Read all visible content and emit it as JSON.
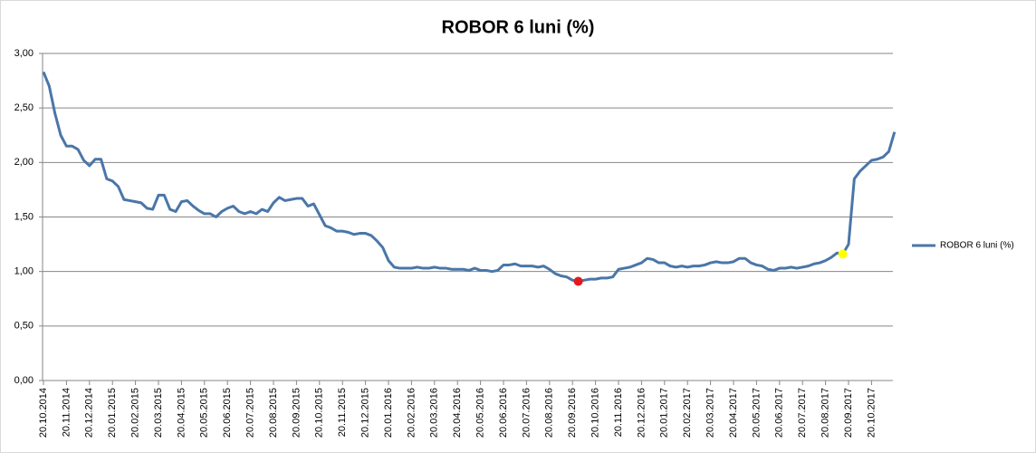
{
  "chart_data": {
    "type": "line",
    "title": "ROBOR 6 luni (%)",
    "categories": [
      "20.10.2014",
      null,
      null,
      null,
      "20.11.2014",
      null,
      null,
      null,
      "20.12.2014",
      null,
      null,
      null,
      "20.01.2015",
      null,
      null,
      null,
      "20.02.2015",
      null,
      null,
      null,
      "20.03.2015",
      null,
      null,
      null,
      "20.04.2015",
      null,
      null,
      null,
      "20.05.2015",
      null,
      null,
      null,
      "20.06.2015",
      null,
      null,
      null,
      "20.07.2015",
      null,
      null,
      null,
      "20.08.2015",
      null,
      null,
      null,
      "20.09.2015",
      null,
      null,
      null,
      "20.10.2015",
      null,
      null,
      null,
      "20.11.2015",
      null,
      null,
      null,
      "20.12.2015",
      null,
      null,
      null,
      "20.01.2016",
      null,
      null,
      null,
      "20.02.2016",
      null,
      null,
      null,
      "20.03.2016",
      null,
      null,
      null,
      "20.04.2016",
      null,
      null,
      null,
      "20.05.2016",
      null,
      null,
      null,
      "20.06.2016",
      null,
      null,
      null,
      "20.07.2016",
      null,
      null,
      null,
      "20.08.2016",
      null,
      null,
      null,
      "20.09.2016",
      null,
      null,
      null,
      "20.10.2016",
      null,
      null,
      null,
      "20.11.2016",
      null,
      null,
      null,
      "20.12.2016",
      null,
      null,
      null,
      "20.01.2017",
      null,
      null,
      null,
      "20.02.2017",
      null,
      null,
      null,
      "20.03.2017",
      null,
      null,
      null,
      "20.04.2017",
      null,
      null,
      null,
      "20.05.2017",
      null,
      null,
      null,
      "20.06.2017",
      null,
      null,
      null,
      "20.07.2017",
      null,
      null,
      null,
      "20.08.2017",
      null,
      null,
      null,
      "20.09.2017",
      null,
      null,
      null,
      "20.10.2017",
      null,
      null,
      null,
      null
    ],
    "series": [
      {
        "name": "ROBOR 6 luni (%)",
        "color": "#4a76a8",
        "values": [
          2.83,
          2.7,
          2.45,
          2.25,
          2.15,
          2.15,
          2.12,
          2.02,
          1.97,
          2.03,
          2.03,
          1.85,
          1.83,
          1.78,
          1.66,
          1.65,
          1.64,
          1.63,
          1.58,
          1.57,
          1.7,
          1.7,
          1.57,
          1.55,
          1.64,
          1.65,
          1.6,
          1.56,
          1.53,
          1.53,
          1.5,
          1.55,
          1.58,
          1.6,
          1.55,
          1.53,
          1.55,
          1.53,
          1.57,
          1.55,
          1.63,
          1.68,
          1.65,
          1.66,
          1.67,
          1.67,
          1.6,
          1.62,
          1.52,
          1.42,
          1.4,
          1.37,
          1.37,
          1.36,
          1.34,
          1.35,
          1.35,
          1.33,
          1.28,
          1.22,
          1.1,
          1.04,
          1.03,
          1.03,
          1.03,
          1.04,
          1.03,
          1.03,
          1.04,
          1.03,
          1.03,
          1.02,
          1.02,
          1.02,
          1.01,
          1.03,
          1.01,
          1.01,
          1.0,
          1.01,
          1.06,
          1.06,
          1.07,
          1.05,
          1.05,
          1.05,
          1.04,
          1.05,
          1.02,
          0.98,
          0.96,
          0.95,
          0.92,
          0.91,
          0.92,
          0.93,
          0.93,
          0.94,
          0.94,
          0.95,
          1.02,
          1.03,
          1.04,
          1.06,
          1.08,
          1.12,
          1.11,
          1.08,
          1.08,
          1.05,
          1.04,
          1.05,
          1.04,
          1.05,
          1.05,
          1.06,
          1.08,
          1.09,
          1.08,
          1.08,
          1.09,
          1.12,
          1.12,
          1.08,
          1.06,
          1.05,
          1.02,
          1.01,
          1.03,
          1.03,
          1.04,
          1.03,
          1.04,
          1.05,
          1.07,
          1.08,
          1.1,
          1.13,
          1.17,
          1.16,
          1.25,
          1.85,
          1.92,
          1.97,
          2.02,
          2.03,
          2.05,
          2.1,
          2.28
        ]
      }
    ],
    "highlight_points": [
      {
        "index": 93,
        "color": "#e31a1c"
      },
      {
        "index": 139,
        "color": "#ffff00"
      }
    ],
    "ylim": [
      0,
      3
    ],
    "yticks": [
      {
        "value": 0,
        "label": "0,00"
      },
      {
        "value": 0.5,
        "label": "0,50"
      },
      {
        "value": 1,
        "label": "1,00"
      },
      {
        "value": 1.5,
        "label": "1,50"
      },
      {
        "value": 2,
        "label": "2,00"
      },
      {
        "value": 2.5,
        "label": "2,50"
      },
      {
        "value": 3,
        "label": "3,00"
      }
    ],
    "grid": true,
    "legend": "right"
  }
}
